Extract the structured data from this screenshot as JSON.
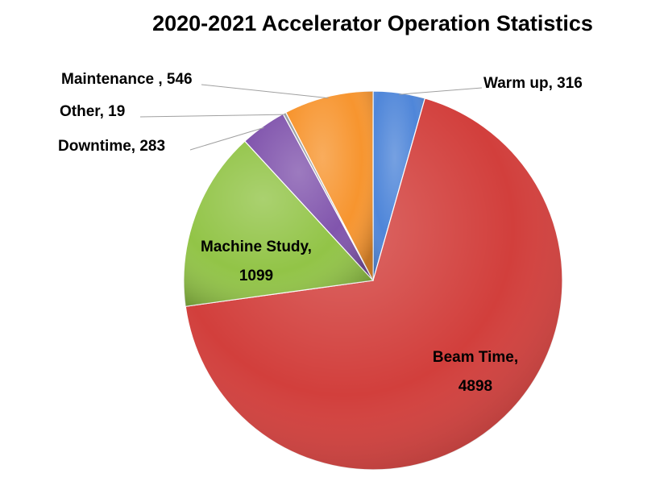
{
  "chart_data": {
    "type": "pie",
    "title": "2020-2021 Accelerator Operation Statistics",
    "slices": [
      {
        "name": "Warm up",
        "value": 316,
        "label": [
          "Warm up, 316"
        ],
        "color": "#4f86d9"
      },
      {
        "name": "Beam Time",
        "value": 4898,
        "label": [
          "Beam Time,",
          "4898"
        ],
        "color": "#d23f3c"
      },
      {
        "name": "Machine Study",
        "value": 1099,
        "label": [
          "Machine Study,",
          "1099"
        ],
        "color": "#92c447"
      },
      {
        "name": "Downtime",
        "value": 283,
        "label": [
          "Downtime, 283"
        ],
        "color": "#8155ad"
      },
      {
        "name": "Other",
        "value": 19,
        "label": [
          "Other, 19"
        ],
        "color": "#9aa0a6"
      },
      {
        "name": "Maintenance",
        "value": 546,
        "label": [
          "Maintenance , 546"
        ],
        "color": "#f7952f"
      }
    ],
    "legend": "none"
  }
}
